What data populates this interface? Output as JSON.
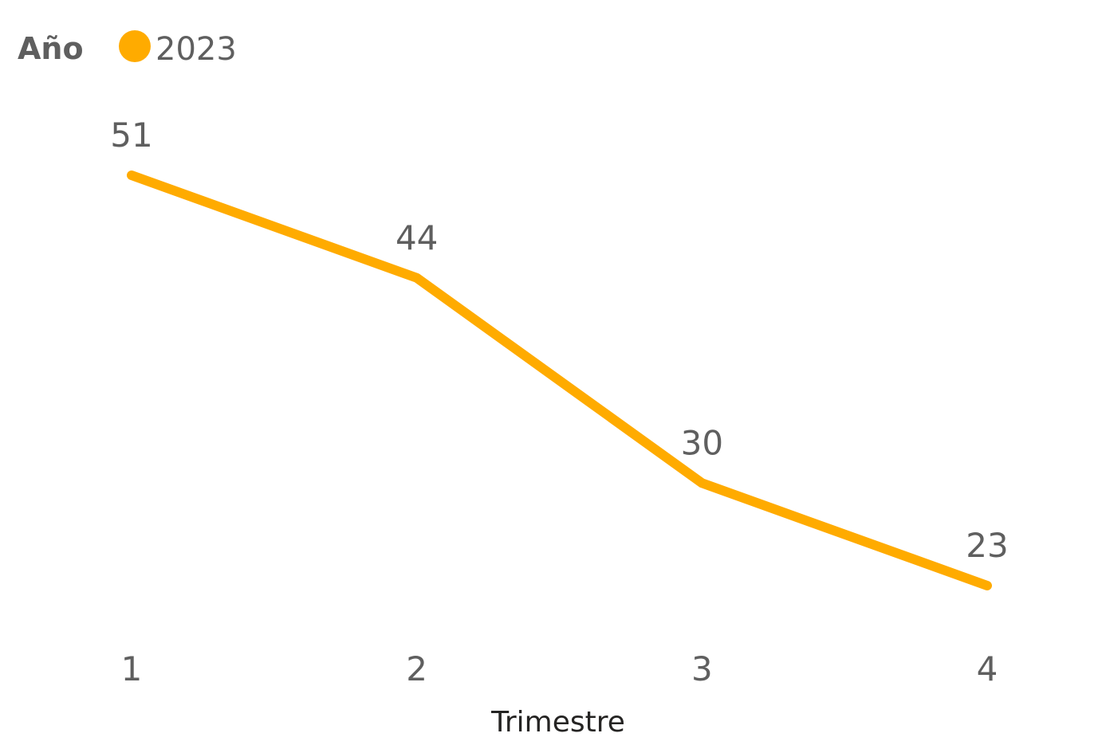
{
  "chart_data": {
    "type": "line",
    "legend": {
      "title": "Año",
      "position": "top-left"
    },
    "x": [
      1,
      2,
      3,
      4
    ],
    "xlabel": "Trimestre",
    "ylabel": "",
    "series": [
      {
        "name": "2023",
        "color": "#FFAB00",
        "values": [
          51,
          44,
          30,
          23
        ]
      }
    ],
    "data_labels": true,
    "grid": false
  }
}
